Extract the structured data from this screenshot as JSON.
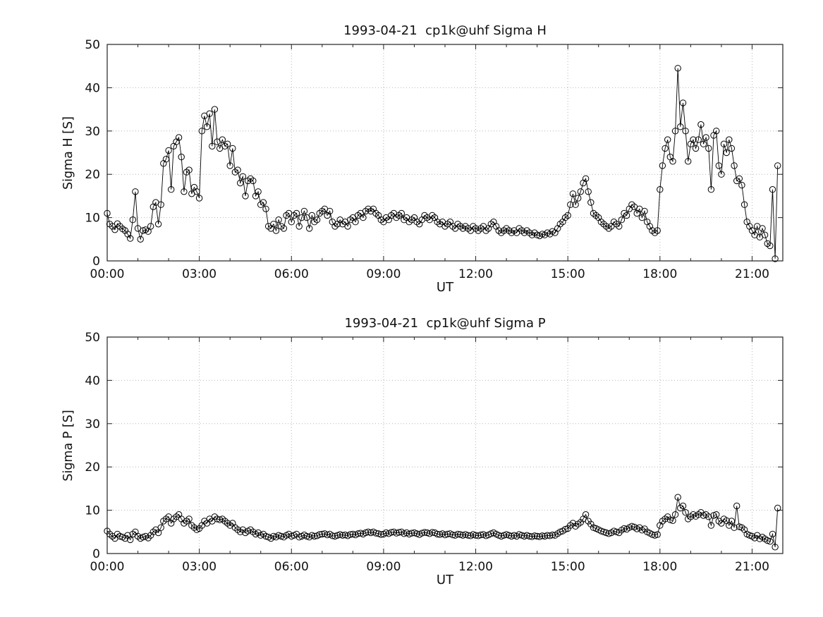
{
  "page": {
    "background": "#ffffff",
    "text_color": "#111111"
  },
  "chart_data": [
    {
      "type": "line",
      "title": "1993-04-21  cp1k@uhf Sigma H",
      "xlabel": "UT",
      "ylabel": "Sigma H [S]",
      "xlim_hours": [
        0,
        22
      ],
      "ylim": [
        0,
        50
      ],
      "yticks": [
        0,
        10,
        20,
        30,
        40,
        50
      ],
      "xtick_hours": [
        0,
        3,
        6,
        9,
        12,
        15,
        18,
        21
      ],
      "xtick_labels": [
        "00:00",
        "03:00",
        "06:00",
        "09:00",
        "12:00",
        "15:00",
        "18:00",
        "21:00"
      ],
      "grid": true,
      "grid_style": "dotted",
      "legend": "none",
      "marker": "open-circle",
      "line_color": "#000000",
      "start_minutes": 0,
      "step_minutes": 5,
      "values": [
        11,
        8.5,
        8,
        7.2,
        8.6,
        8,
        7.4,
        7,
        6.2,
        5.2,
        9.5,
        16,
        7.5,
        5,
        7,
        7.2,
        6.8,
        8,
        12.5,
        13.5,
        8.5,
        13,
        22.5,
        23.5,
        25.5,
        16.5,
        26.5,
        27.5,
        28.5,
        24,
        16,
        20.5,
        21,
        15.5,
        17,
        16,
        14.5,
        30,
        33.5,
        31,
        34,
        26.5,
        35,
        27.5,
        26,
        28,
        26.5,
        27,
        22,
        26,
        20.5,
        21,
        18,
        19.5,
        15,
        18.5,
        19,
        18.5,
        15,
        16,
        13,
        13.5,
        12,
        8,
        7.5,
        8.5,
        7,
        9.5,
        8,
        7.5,
        10.5,
        11,
        9,
        10.5,
        11,
        8,
        10,
        11.5,
        10,
        7.5,
        10.5,
        9,
        9.5,
        11,
        11.5,
        12,
        10.5,
        11.5,
        9,
        8,
        8.5,
        9.5,
        8.5,
        9,
        8,
        9.5,
        10,
        9,
        10.5,
        11,
        10,
        11.5,
        12,
        11.5,
        12,
        11,
        10.5,
        9.5,
        9,
        10,
        9.5,
        10.5,
        11,
        10,
        10.5,
        11,
        9.5,
        10,
        9,
        9.5,
        10,
        9,
        8.5,
        9.5,
        10.5,
        10,
        9.5,
        10.5,
        10,
        9,
        8.5,
        9,
        8,
        8.5,
        9,
        8,
        7.5,
        8.5,
        8,
        7.5,
        8,
        7.5,
        7,
        8,
        7.5,
        7,
        7.5,
        8,
        7,
        7.5,
        8.5,
        9,
        8,
        7,
        6.5,
        7,
        7.5,
        7,
        6.5,
        7,
        6.5,
        7.5,
        7,
        6.5,
        7,
        6.5,
        6,
        6.5,
        6,
        5.8,
        6.2,
        6,
        6.5,
        6.2,
        6.8,
        6.5,
        7.5,
        8.5,
        9,
        10,
        10.5,
        13,
        15.5,
        13,
        14.5,
        16,
        18,
        19,
        16,
        13.5,
        11,
        10.5,
        10,
        9,
        8.5,
        8,
        7.5,
        8,
        9,
        8.5,
        8,
        9.5,
        11,
        10.5,
        12,
        13,
        12.5,
        11,
        12,
        10,
        11.5,
        9,
        8,
        7,
        6.5,
        7,
        16.5,
        22,
        26,
        28,
        24,
        23,
        30,
        44.5,
        31,
        36.5,
        30,
        23,
        27,
        28,
        26,
        28,
        31.5,
        27,
        28.5,
        26,
        16.5,
        29,
        30,
        22,
        20,
        27,
        25,
        28,
        26,
        22,
        18.5,
        19,
        17.5,
        13,
        9,
        8,
        7,
        6,
        8,
        5.5,
        7.5,
        6,
        4,
        3.5,
        16.5,
        0.5,
        22
      ]
    },
    {
      "type": "line",
      "title": "1993-04-21  cp1k@uhf Sigma P",
      "xlabel": "UT",
      "ylabel": "Sigma P [S]",
      "xlim_hours": [
        0,
        22
      ],
      "ylim": [
        0,
        50
      ],
      "yticks": [
        0,
        10,
        20,
        30,
        40,
        50
      ],
      "xtick_hours": [
        0,
        3,
        6,
        9,
        12,
        15,
        18,
        21
      ],
      "xtick_labels": [
        "00:00",
        "03:00",
        "06:00",
        "09:00",
        "12:00",
        "15:00",
        "18:00",
        "21:00"
      ],
      "grid": true,
      "grid_style": "dotted",
      "legend": "none",
      "marker": "open-circle",
      "line_color": "#000000",
      "start_minutes": 0,
      "step_minutes": 5,
      "values": [
        5.2,
        4.5,
        4,
        3.5,
        4.5,
        4,
        3.8,
        3.5,
        4.2,
        3.2,
        4.5,
        5,
        4,
        3.5,
        3.8,
        4,
        3.6,
        4.2,
        5,
        5.5,
        4.8,
        6,
        7.5,
        8,
        8.5,
        7,
        8,
        8.5,
        9,
        8,
        7,
        7.5,
        8,
        6.5,
        6,
        5.5,
        5.8,
        6.5,
        7.5,
        7,
        8,
        7.5,
        8.5,
        8,
        7.8,
        8,
        7.5,
        7,
        6.5,
        7,
        6,
        5.5,
        5,
        5.5,
        4.8,
        5.2,
        5.5,
        5,
        4.5,
        4.8,
        4.2,
        4.5,
        4,
        3.8,
        3.5,
        4,
        3.8,
        4.2,
        4,
        3.8,
        4.2,
        4.5,
        4,
        4.2,
        4.5,
        3.8,
        4,
        4.3,
        4,
        3.8,
        4.2,
        4,
        4.1,
        4.4,
        4.5,
        4.6,
        4.3,
        4.5,
        4.1,
        4,
        4.2,
        4.4,
        4.2,
        4.3,
        4.1,
        4.4,
        4.5,
        4.3,
        4.6,
        4.7,
        4.5,
        4.8,
        5,
        4.8,
        5,
        4.7,
        4.6,
        4.4,
        4.5,
        4.8,
        4.6,
        4.9,
        5,
        4.7,
        4.9,
        5,
        4.6,
        4.8,
        4.5,
        4.7,
        4.8,
        4.6,
        4.4,
        4.7,
        4.9,
        4.8,
        4.6,
        4.9,
        4.8,
        4.5,
        4.4,
        4.6,
        4.3,
        4.5,
        4.6,
        4.3,
        4.2,
        4.5,
        4.4,
        4.2,
        4.4,
        4.2,
        4.1,
        4.4,
        4.2,
        4.1,
        4.3,
        4.4,
        4.1,
        4.3,
        4.6,
        4.8,
        4.5,
        4.2,
        4,
        4.2,
        4.4,
        4.2,
        4,
        4.2,
        4,
        4.4,
        4.2,
        4,
        4.2,
        4,
        3.9,
        4.1,
        4,
        3.9,
        4.1,
        4,
        4.2,
        4.1,
        4.3,
        4.2,
        4.6,
        5,
        5.2,
        5.6,
        5.8,
        6.5,
        7,
        6.3,
        6.8,
        7.2,
        8,
        9,
        7.5,
        6.8,
        6,
        5.8,
        5.5,
        5.2,
        5,
        4.8,
        4.6,
        4.8,
        5.2,
        5,
        4.8,
        5.4,
        5.8,
        5.6,
        6,
        6.3,
        6.1,
        5.7,
        6,
        5.4,
        5.7,
        5,
        4.7,
        4.4,
        4.2,
        4.4,
        6.5,
        7.5,
        8,
        8.5,
        7.8,
        7.6,
        9,
        13,
        10.5,
        11,
        9.5,
        8,
        8.5,
        9,
        8.6,
        9,
        9.5,
        8.8,
        9,
        8.5,
        6.5,
        8.8,
        9,
        7.5,
        7,
        8,
        7.6,
        6.5,
        7.5,
        6,
        11,
        6.2,
        6,
        5.5,
        4.5,
        4.2,
        4,
        3.6,
        4.2,
        3.4,
        3.8,
        3.4,
        3,
        2.8,
        4.5,
        1.5,
        10.5
      ]
    }
  ]
}
